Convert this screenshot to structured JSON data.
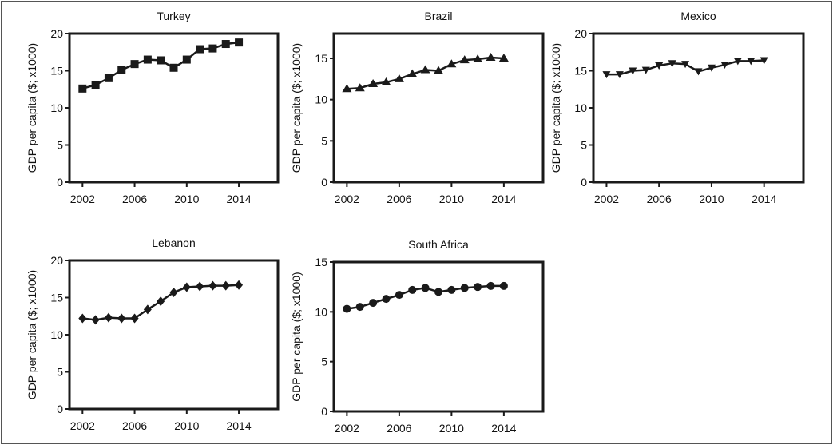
{
  "chart_data": [
    {
      "type": "line",
      "title": "Turkey",
      "marker": "square",
      "ylabel": "GDP per capita ($; x1000)",
      "xlim": [
        2001,
        2017
      ],
      "ylim": [
        0,
        20
      ],
      "xticks": [
        2002,
        2006,
        2010,
        2014
      ],
      "yticks": [
        0,
        5,
        10,
        15,
        20
      ],
      "x": [
        2002,
        2003,
        2004,
        2005,
        2006,
        2007,
        2008,
        2009,
        2010,
        2011,
        2012,
        2013,
        2014
      ],
      "values": [
        12.6,
        13.1,
        14.0,
        15.1,
        15.9,
        16.5,
        16.4,
        15.4,
        16.5,
        17.9,
        18.0,
        18.6,
        18.8
      ]
    },
    {
      "type": "line",
      "title": "Brazil",
      "marker": "triangle-up",
      "ylabel": "GDP per capita ($; x1000)",
      "xlim": [
        2001,
        2017
      ],
      "ylim": [
        0,
        18
      ],
      "xticks": [
        2002,
        2006,
        2010,
        2014
      ],
      "yticks": [
        0,
        5,
        10,
        15
      ],
      "x": [
        2002,
        2003,
        2004,
        2005,
        2006,
        2007,
        2008,
        2009,
        2010,
        2011,
        2012,
        2013,
        2014
      ],
      "values": [
        11.3,
        11.4,
        11.9,
        12.1,
        12.5,
        13.1,
        13.6,
        13.5,
        14.3,
        14.8,
        14.9,
        15.1,
        15.0
      ]
    },
    {
      "type": "line",
      "title": "Mexico",
      "marker": "triangle-down",
      "ylabel": "GDP per capita ($; x1000)",
      "xlim": [
        2001,
        2017
      ],
      "ylim": [
        0,
        20
      ],
      "xticks": [
        2002,
        2006,
        2010,
        2014
      ],
      "yticks": [
        0,
        5,
        10,
        15,
        20
      ],
      "x": [
        2002,
        2003,
        2004,
        2005,
        2006,
        2007,
        2008,
        2009,
        2010,
        2011,
        2012,
        2013,
        2014
      ],
      "values": [
        14.5,
        14.5,
        15.0,
        15.1,
        15.7,
        16.0,
        15.9,
        14.9,
        15.4,
        15.8,
        16.3,
        16.3,
        16.4
      ]
    },
    {
      "type": "line",
      "title": "Lebanon",
      "marker": "diamond",
      "ylabel": "GDP per capita ($; x1000)",
      "xlim": [
        2001,
        2017
      ],
      "ylim": [
        0,
        20
      ],
      "xticks": [
        2002,
        2006,
        2010,
        2014
      ],
      "yticks": [
        0,
        5,
        10,
        15,
        20
      ],
      "x": [
        2002,
        2003,
        2004,
        2005,
        2006,
        2007,
        2008,
        2009,
        2010,
        2011,
        2012,
        2013,
        2014
      ],
      "values": [
        12.2,
        12.0,
        12.3,
        12.2,
        12.2,
        13.4,
        14.5,
        15.7,
        16.4,
        16.5,
        16.6,
        16.6,
        16.7
      ]
    },
    {
      "type": "line",
      "title": "South Africa",
      "marker": "circle",
      "ylabel": "GDP per capita ($; x1000)",
      "xlim": [
        2001,
        2017
      ],
      "ylim": [
        0,
        15
      ],
      "xticks": [
        2002,
        2006,
        2010,
        2014
      ],
      "yticks": [
        0,
        5,
        10,
        15
      ],
      "x": [
        2002,
        2003,
        2004,
        2005,
        2006,
        2007,
        2008,
        2009,
        2010,
        2011,
        2012,
        2013,
        2014
      ],
      "values": [
        10.3,
        10.5,
        10.9,
        11.3,
        11.7,
        12.2,
        12.4,
        12.0,
        12.2,
        12.4,
        12.5,
        12.6,
        12.6
      ]
    }
  ],
  "colors": {
    "line": "#1a1a1a",
    "axis": "#1a1a1a"
  }
}
